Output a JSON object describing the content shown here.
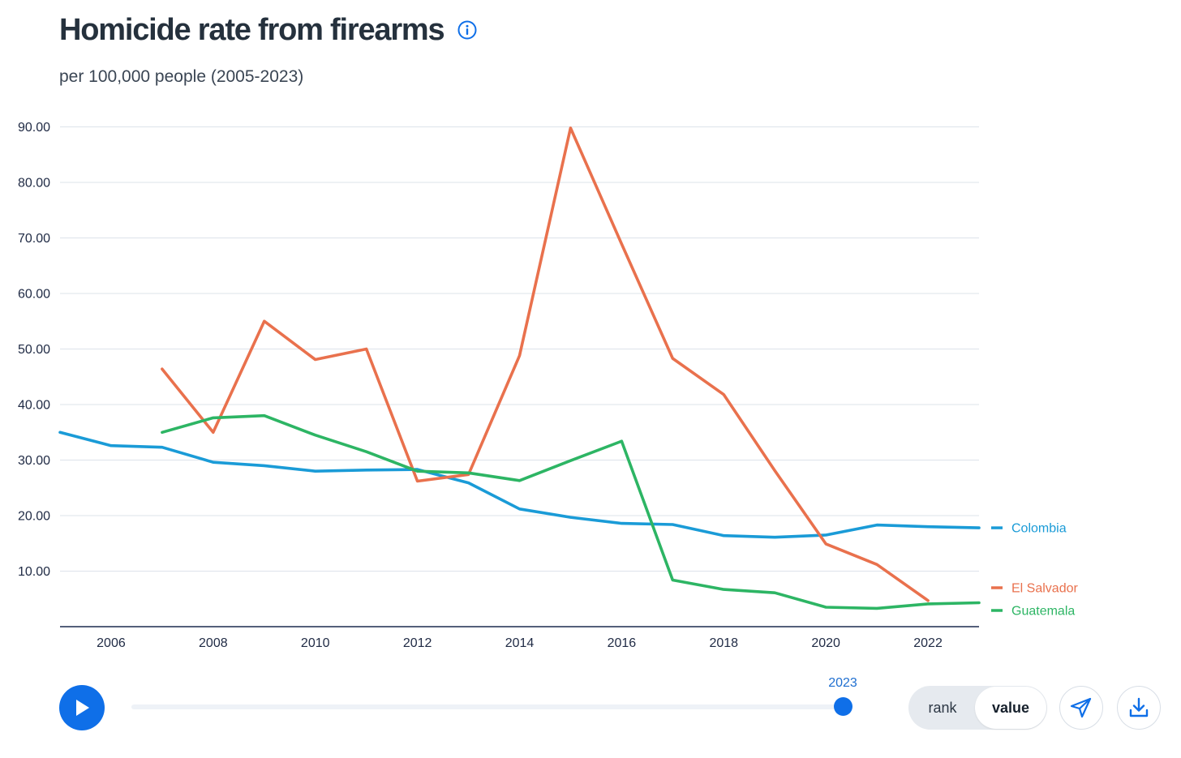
{
  "header": {
    "title": "Homicide rate from firearms",
    "subtitle": "per 100,000 people (2005-2023)",
    "info_icon": "info-icon"
  },
  "chart_data": {
    "type": "line",
    "title": "Homicide rate from firearms",
    "subtitle": "per 100,000 people (2005-2023)",
    "x": [
      2005,
      2006,
      2007,
      2008,
      2009,
      2010,
      2011,
      2012,
      2013,
      2014,
      2015,
      2016,
      2017,
      2018,
      2019,
      2020,
      2021,
      2022,
      2023
    ],
    "xlim": [
      2005,
      2023
    ],
    "ylim": [
      0,
      90
    ],
    "y_ticks": [
      10,
      20,
      30,
      40,
      50,
      60,
      70,
      80,
      90
    ],
    "y_tick_labels": [
      "10.00",
      "20.00",
      "30.00",
      "40.00",
      "50.00",
      "60.00",
      "70.00",
      "80.00",
      "90.00"
    ],
    "x_ticks": [
      2006,
      2008,
      2010,
      2012,
      2014,
      2016,
      2018,
      2020,
      2022
    ],
    "x_tick_labels": [
      "2006",
      "2008",
      "2010",
      "2012",
      "2014",
      "2016",
      "2018",
      "2020",
      "2022"
    ],
    "grid": true,
    "legend": "right (line end labels)",
    "series": [
      {
        "name": "Colombia",
        "color": "#1a9bd7",
        "values": [
          35.0,
          32.6,
          32.3,
          29.6,
          29.0,
          28.0,
          28.2,
          28.3,
          25.9,
          21.2,
          19.7,
          18.6,
          18.4,
          16.4,
          16.1,
          16.5,
          18.3,
          18.0,
          17.8
        ]
      },
      {
        "name": "El Salvador",
        "color": "#e9714d",
        "values": [
          null,
          null,
          46.4,
          35.0,
          55.0,
          48.1,
          50.0,
          26.2,
          27.4,
          48.8,
          89.8,
          68.9,
          48.3,
          41.8,
          28.1,
          14.9,
          11.2,
          4.7,
          null
        ]
      },
      {
        "name": "Guatemala",
        "color": "#2db564",
        "values": [
          null,
          null,
          35.0,
          37.6,
          38.0,
          34.5,
          31.5,
          28.0,
          27.7,
          26.3,
          29.9,
          33.4,
          8.4,
          6.7,
          6.1,
          3.5,
          3.3,
          4.1,
          4.3
        ]
      }
    ]
  },
  "controls": {
    "play_icon": "play-icon",
    "slider_year": "2023",
    "slider_fraction": 1.0,
    "toggle_rank": "rank",
    "toggle_value": "value",
    "selected_toggle": "value",
    "share_icon": "share-icon",
    "download_icon": "download-icon",
    "accent_color": "#0f6fe8"
  }
}
